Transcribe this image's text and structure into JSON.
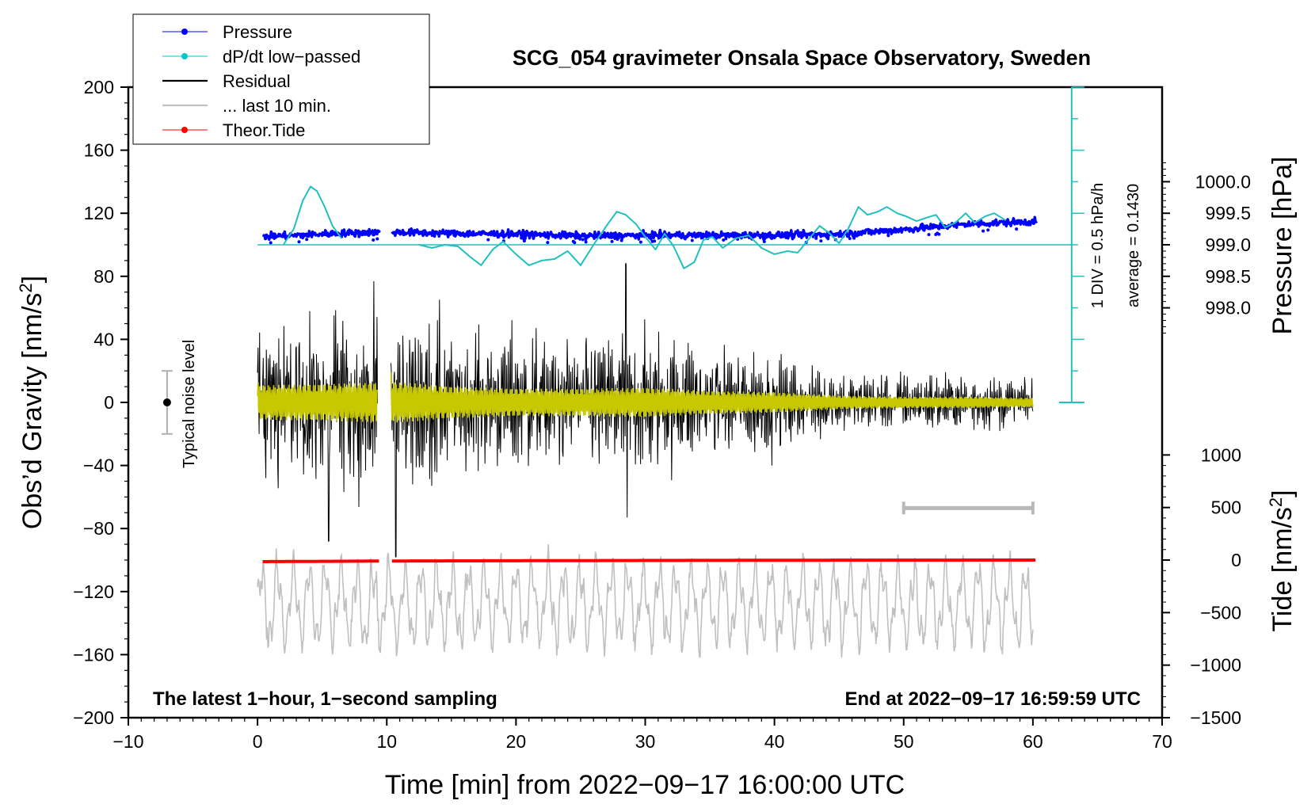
{
  "chart_data": {
    "type": "line",
    "title": "SCG_054 gravimeter Onsala Space Observatory, Sweden",
    "xlabel": "Time [min] from 2022−09−17 16:00:00 UTC",
    "ylabel": "Obs’d Gravity [nm/s²]",
    "ylabel_main": "Obs’d Gravity [nm/s",
    "ylabel_sup": "2",
    "ylabel_end": "]",
    "xlim": [
      -10,
      70
    ],
    "ylim": [
      -200,
      200
    ],
    "xticks": [
      "−10",
      "0",
      "10",
      "20",
      "30",
      "40",
      "50",
      "60",
      "70"
    ],
    "xtick_values": [
      -10,
      0,
      10,
      20,
      30,
      40,
      50,
      60,
      70
    ],
    "yticks": [
      "200",
      "160",
      "120",
      "80",
      "40",
      "0",
      "−40",
      "−80",
      "−120",
      "−160",
      "−200"
    ],
    "ytick_values": [
      200,
      160,
      120,
      80,
      40,
      0,
      -40,
      -80,
      -120,
      -160,
      -200
    ],
    "pressure_axis": {
      "label": "Pressure [hPa]",
      "ticks": [
        "1000.0",
        "999.5",
        "999.0",
        "998.5",
        "998.0"
      ],
      "tick_values": [
        1000.0,
        999.5,
        999.0,
        998.5,
        998.0
      ],
      "mapping": "999.0 hPa at gravity 100; 1 hPa = 40 gravity units"
    },
    "tide_axis": {
      "label_main": "Tide [nm/s",
      "label_sup": "2",
      "label_end": "]",
      "ticks": [
        "1000",
        "500",
        "0",
        "−500",
        "−1000",
        "−1500"
      ],
      "tick_values": [
        1000,
        500,
        0,
        -500,
        -1000,
        -1500
      ],
      "mapping": "0 at gravity -100; 500 nm/s² = 33.3 gravity units"
    },
    "dpdt_scale": {
      "line1": "1 DIV = 0.5 hPa/h",
      "line2": "average = 0.1430",
      "baseline_y": 100,
      "scale_top_y": 200,
      "scale_bottom_y": 0,
      "x": 63
    },
    "noise_indicator": {
      "label": "Typical noise level",
      "x": -7,
      "y": 0,
      "low": -20,
      "high": 20
    },
    "last10_bar": {
      "x_start": 50,
      "x_end": 60,
      "y": -67
    },
    "legend": [
      {
        "label": "Pressure",
        "color": "#0000ff",
        "marker": true
      },
      {
        "label": "dP/dt low−passed",
        "color": "#00c8c8",
        "marker": true
      },
      {
        "label": "Residual",
        "color": "#000000",
        "marker": false
      },
      {
        "label": "... last 10 min.",
        "color": "#c0c0c0",
        "marker": false
      },
      {
        "label": "Theor.Tide",
        "color": "#ff0000",
        "marker": true
      }
    ],
    "colors": {
      "pressure": "#0000ff",
      "dpdt": "#20c0c0",
      "residual": "#000000",
      "residual_smooth": "#c8c800",
      "last10": "#c0c0c0",
      "tide": "#ff0000"
    },
    "bottom_left_note": "The latest 1−hour, 1−second sampling",
    "bottom_right_note": "End at 2022−09−17 16:59:59 UTC",
    "series": [
      {
        "name": "Pressure",
        "unit": "hPa",
        "gaps": [
          [
            9.5,
            10.4
          ]
        ],
        "x": [
          0.4,
          3.0,
          6.0,
          9.5,
          10.4,
          15,
          20,
          25,
          30,
          35,
          40,
          45,
          50,
          55,
          60.3
        ],
        "values": [
          999.13,
          999.15,
          999.18,
          999.2,
          999.2,
          999.18,
          999.17,
          999.14,
          999.15,
          999.15,
          999.15,
          999.17,
          999.24,
          999.33,
          999.37
        ]
      },
      {
        "name": "dP/dt low-passed",
        "unit": "gravity-scale",
        "segments": [
          {
            "x": [
              2.0,
              2.8,
              3.5,
              4.1,
              4.6,
              5.2,
              5.8,
              6.5
            ],
            "values": [
              100,
              110,
              128,
              137,
              134,
              124,
              112,
              104
            ]
          },
          {
            "x": [
              12.5,
              13.5,
              14.5,
              15.5,
              16.5,
              17.3,
              18.2,
              19.0,
              20.0,
              21.0,
              22.0,
              23.0,
              24.0,
              25.0,
              26.0,
              27.0,
              27.8,
              28.5,
              29.3,
              30.0,
              30.8,
              31.5,
              32.2,
              33.0,
              33.8,
              34.5,
              35.2,
              36.0,
              37.0,
              38.0,
              39.0,
              40.0,
              41.0,
              41.8,
              42.6,
              43.5,
              44.3,
              45.0,
              45.7,
              46.5,
              47.2,
              48.0,
              48.7,
              49.5,
              50.2,
              51.0,
              51.7,
              52.5,
              53.2,
              54.0,
              54.8,
              55.5,
              56.3,
              57.0,
              58.0
            ],
            "values": [
              100,
              98,
              100,
              99,
              92,
              87,
              97,
              102,
              94,
              87,
              90,
              91,
              96,
              87,
              100,
              112,
              121,
              119,
              113,
              105,
              97,
              107,
              99,
              85,
              89,
              103,
              105,
              98,
              104,
              106,
              98,
              94,
              96,
              95,
              103,
              112,
              107,
              101,
              110,
              124,
              119,
              121,
              124,
              120,
              118,
              115,
              117,
              119,
              111,
              114,
              120,
              114,
              118,
              120,
              115
            ]
          }
        ]
      },
      {
        "name": "Residual",
        "unit": "nm/s²",
        "gaps": [
          [
            9.3,
            10.3
          ]
        ],
        "x": [
          0,
          5,
          10.5,
          15,
          20,
          25,
          30,
          35,
          40,
          45,
          50,
          55,
          60
        ],
        "envelope": [
          75,
          80,
          90,
          70,
          60,
          60,
          65,
          50,
          45,
          30,
          25,
          25,
          20
        ],
        "peaks": [
          {
            "x": 28.5,
            "y": 88
          },
          {
            "x": 28.6,
            "y": -73
          },
          {
            "x": 10.7,
            "y": -98
          },
          {
            "x": 5.5,
            "y": -88
          }
        ]
      },
      {
        "name": "... last 10 min.",
        "unit": "nm/s² (offset display, centered at -128)",
        "x": [
          0,
          60
        ],
        "center": -128,
        "amplitude": 28
      },
      {
        "name": "Theor.Tide",
        "unit": "nm/s²",
        "gaps": [
          [
            9.5,
            10.3
          ]
        ],
        "x": [
          0.4,
          10.3,
          30,
          45,
          60.3
        ],
        "values": [
          -15,
          -9,
          -4,
          -1,
          0
        ]
      }
    ]
  }
}
